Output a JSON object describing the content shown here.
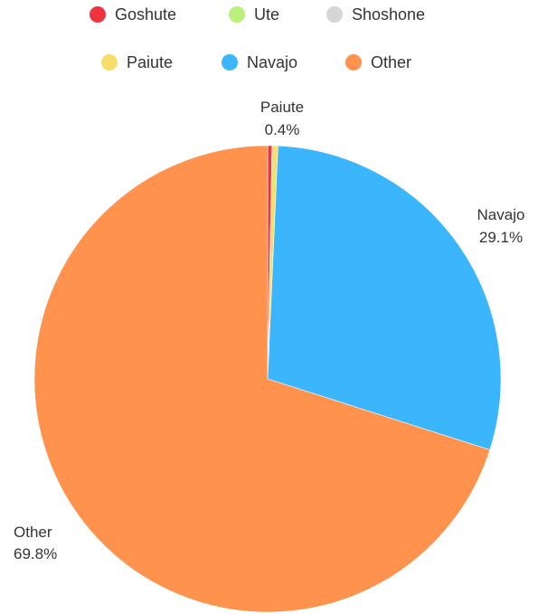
{
  "chart_data": {
    "type": "pie",
    "title": "",
    "legend_position": "top",
    "slices": [
      {
        "label": "Goshute",
        "value": 0.3,
        "color": "#ef3340",
        "data_label": ""
      },
      {
        "label": "Ute",
        "value": 0.0,
        "color": "#b9ef7a",
        "data_label": ""
      },
      {
        "label": "Shoshone",
        "value": 0.0,
        "color": "#d6d6d6",
        "data_label": ""
      },
      {
        "label": "Paiute",
        "value": 0.4,
        "color": "#f5de6a",
        "data_label": "0.4%"
      },
      {
        "label": "Navajo",
        "value": 29.1,
        "color": "#3bb5fb",
        "data_label": "29.1%"
      },
      {
        "label": "Other",
        "value": 69.8,
        "color": "#ff924c",
        "data_label": "69.8%"
      }
    ]
  }
}
